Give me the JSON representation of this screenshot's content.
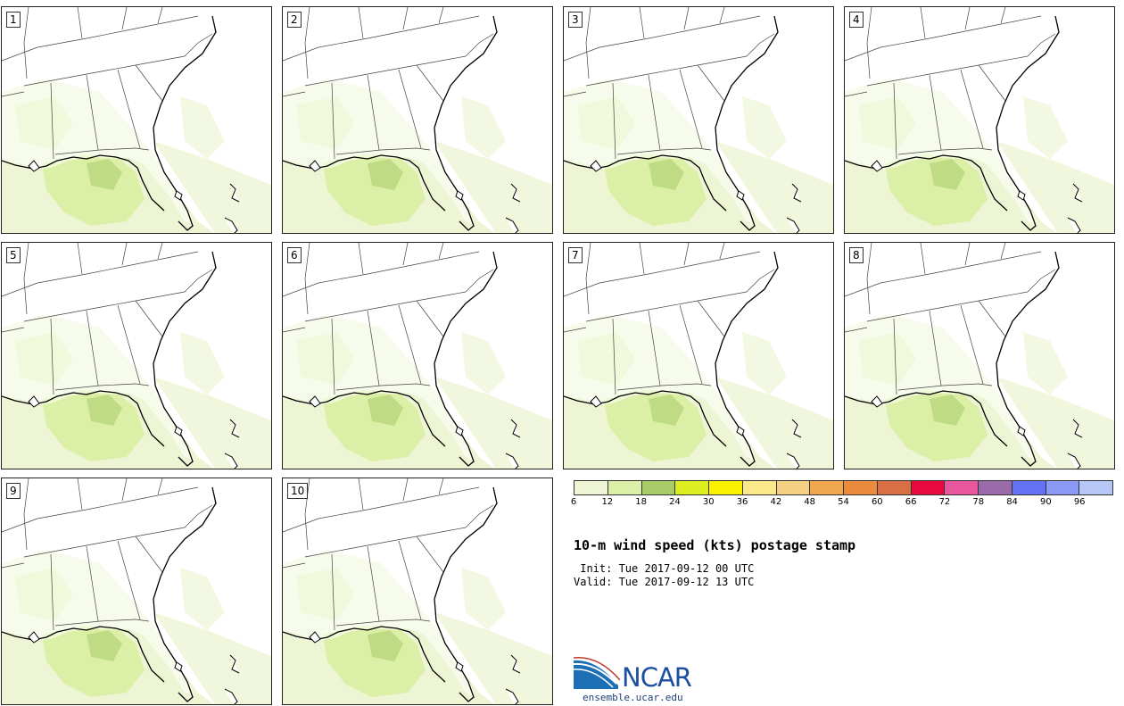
{
  "title": "10-m wind speed (kts) postage stamp",
  "init_line": " Init: Tue 2017-09-12 00 UTC",
  "valid_line": "Valid: Tue 2017-09-12 13 UTC",
  "colorbar": {
    "colors": [
      "#edf5d4",
      "#dcefa6",
      "#a7cc68",
      "#dcee1f",
      "#fbf100",
      "#fbe88a",
      "#f5cf82",
      "#f0a74e",
      "#e98a3c",
      "#d97044",
      "#e8093e",
      "#e8579d",
      "#9b6aab",
      "#6471f2",
      "#8b99f6",
      "#b6c6f7"
    ],
    "tick_labels": [
      "6",
      "12",
      "18",
      "24",
      "30",
      "36",
      "42",
      "48",
      "54",
      "60",
      "66",
      "72",
      "78",
      "84",
      "90",
      "96"
    ]
  },
  "panels": [
    {
      "label": "1"
    },
    {
      "label": "2"
    },
    {
      "label": "3"
    },
    {
      "label": "4"
    },
    {
      "label": "5"
    },
    {
      "label": "6"
    },
    {
      "label": "7"
    },
    {
      "label": "8"
    },
    {
      "label": "9"
    },
    {
      "label": "10"
    }
  ],
  "logo": {
    "name": "NCAR",
    "url": "ensemble.ucar.edu"
  }
}
